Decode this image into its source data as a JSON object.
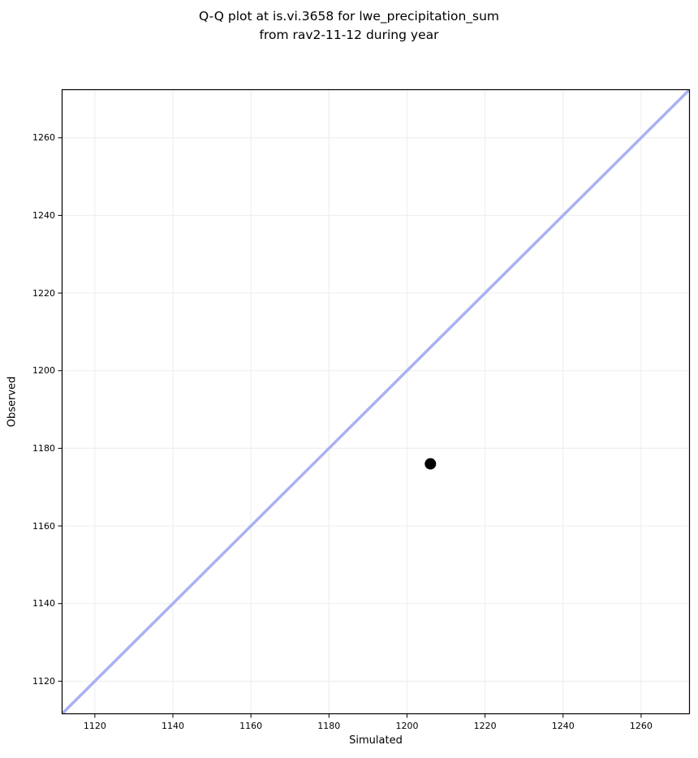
{
  "title": {
    "line1": "Q-Q plot at is.vi.3658 for lwe_precipitation_sum",
    "line2": "from rav2-11-12 during year"
  },
  "chart_data": {
    "type": "scatter",
    "title": "Q-Q plot at is.vi.3658 for lwe_precipitation_sum\nfrom rav2-11-12 during year",
    "xlabel": "Simulated",
    "ylabel": "Observed",
    "xlim": [
      1111.5,
      1272.5
    ],
    "ylim": [
      1111.5,
      1272.5
    ],
    "xticks": [
      1120,
      1140,
      1160,
      1180,
      1200,
      1220,
      1240,
      1260
    ],
    "yticks": [
      1120,
      1140,
      1160,
      1180,
      1200,
      1220,
      1240,
      1260
    ],
    "grid": true,
    "legend": "none",
    "series": [
      {
        "name": "identity-reference-line",
        "type": "line",
        "color": "#aab1f2",
        "line_width": 3.5,
        "x": [
          1111.5,
          1272.5
        ],
        "y": [
          1111.5,
          1272.5
        ]
      },
      {
        "name": "quantile-points",
        "type": "scatter",
        "color": "#000000",
        "marker": "circle",
        "marker_radius": 7,
        "points": [
          {
            "x": 1206,
            "y": 1176
          }
        ]
      }
    ],
    "colors": {
      "grid": "#efefef",
      "axis": "#000000",
      "text": "#000000",
      "background": "#ffffff"
    }
  }
}
